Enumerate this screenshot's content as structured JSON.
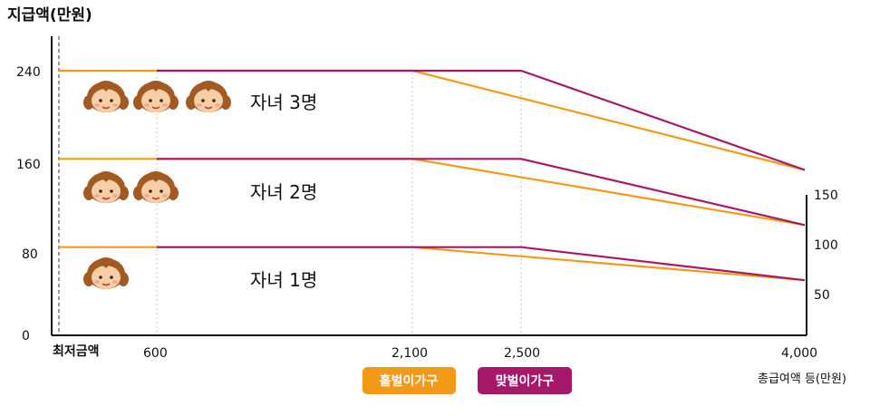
{
  "colors": {
    "single": "#f29a17",
    "dual": "#a5186a",
    "axis": "#111111",
    "grid": "#c8c8c8"
  },
  "chart_data": {
    "type": "line",
    "title": "지급액(만원)",
    "xlabel": "총급여액 등(만원)",
    "x_ticks": [
      {
        "value": 0,
        "label": "최저금액"
      },
      {
        "value": 600,
        "label": "600"
      },
      {
        "value": 2100,
        "label": "2,100"
      },
      {
        "value": 2500,
        "label": "2,500"
      },
      {
        "value": 4000,
        "label": "4,000"
      }
    ],
    "y_ticks_left": [
      "0",
      "80",
      "160",
      "240"
    ],
    "y_ticks_right": [
      "50",
      "100",
      "150"
    ],
    "ylim": [
      0,
      260
    ],
    "xlim": [
      0,
      4000
    ],
    "legend": [
      {
        "name": "홑벌이가구",
        "color": "#f29a17"
      },
      {
        "name": "맞벌이가구",
        "color": "#a5186a"
      }
    ],
    "groups": [
      {
        "label": "자녀 1명",
        "children": 1,
        "single": [
          [
            0,
            80
          ],
          [
            600,
            80
          ],
          [
            2100,
            80
          ],
          [
            4000,
            50
          ]
        ],
        "dual": [
          [
            600,
            80
          ],
          [
            2500,
            80
          ],
          [
            4000,
            50
          ]
        ]
      },
      {
        "label": "자녀 2명",
        "children": 2,
        "single": [
          [
            0,
            160
          ],
          [
            600,
            160
          ],
          [
            2100,
            160
          ],
          [
            4000,
            100
          ]
        ],
        "dual": [
          [
            600,
            160
          ],
          [
            2500,
            160
          ],
          [
            4000,
            100
          ]
        ]
      },
      {
        "label": "자녀 3명",
        "children": 3,
        "single": [
          [
            0,
            240
          ],
          [
            600,
            240
          ],
          [
            2100,
            240
          ],
          [
            4000,
            150
          ]
        ],
        "dual": [
          [
            600,
            240
          ],
          [
            2500,
            240
          ],
          [
            4000,
            150
          ]
        ]
      }
    ]
  }
}
